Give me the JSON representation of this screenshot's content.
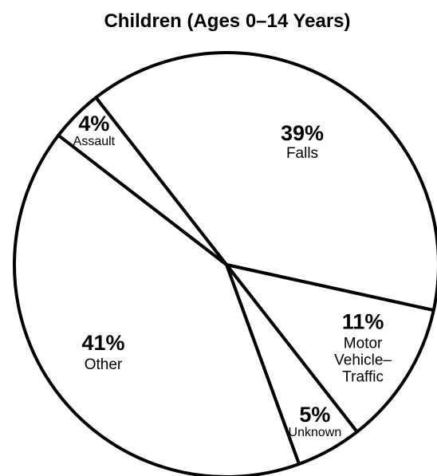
{
  "chart_data": {
    "type": "pie",
    "title": "Children (Ages 0–14 Years)",
    "slices": [
      {
        "label": "Falls",
        "label_lines": [
          "Falls"
        ],
        "value": 39,
        "display": "39%",
        "color": "#ffffff"
      },
      {
        "label": "Motor Vehicle–Traffic",
        "label_lines": [
          "Motor",
          "Vehicle–",
          "Traffic"
        ],
        "value": 11,
        "display": "11%",
        "color": "#ffffff"
      },
      {
        "label": "Unknown",
        "label_lines": [
          "Unknown"
        ],
        "value": 5,
        "display": "5%",
        "color": "#ffffff"
      },
      {
        "label": "Other",
        "label_lines": [
          "Other"
        ],
        "value": 41,
        "display": "41%",
        "color": "#ffffff"
      },
      {
        "label": "Assault",
        "label_lines": [
          "Assault"
        ],
        "value": 4,
        "display": "4%",
        "color": "#ffffff"
      }
    ],
    "legend": "none",
    "edge_color": "#000000"
  }
}
